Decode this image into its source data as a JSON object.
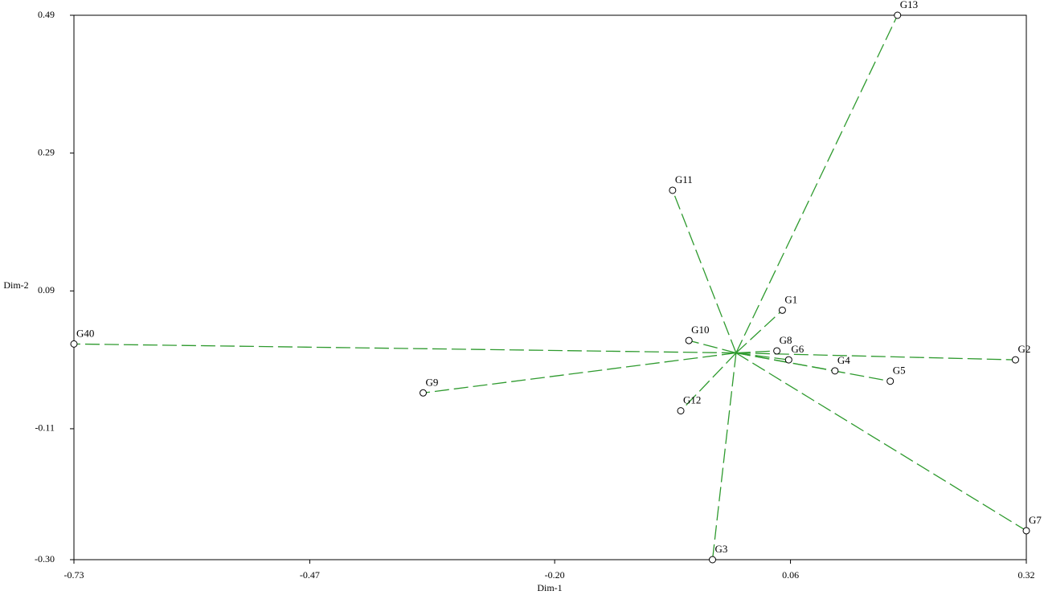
{
  "chart_data": {
    "type": "scatter",
    "x_label": "Dim-1",
    "y_label": "Dim-2",
    "labels": [
      "G13",
      "G11",
      "G1",
      "G40",
      "G10",
      "G8",
      "G6",
      "G2",
      "G4",
      "G5",
      "G9",
      "G12",
      "G7",
      "G3"
    ],
    "x": [
      0.178,
      -0.07,
      0.051,
      -0.73,
      -0.052,
      0.045,
      0.058,
      0.308,
      0.109,
      0.17,
      -0.345,
      -0.061,
      0.32,
      -0.026
    ],
    "y": [
      0.49,
      0.236,
      0.062,
      0.013,
      0.018,
      0.003,
      -0.01,
      -0.01,
      -0.026,
      -0.041,
      -0.058,
      -0.084,
      -0.258,
      -0.3
    ],
    "color": "#2e9a2e",
    "xlim": [
      -0.73,
      0.32
    ],
    "ylim": [
      -0.3,
      0.49
    ],
    "xticks": [
      -0.73,
      -0.47,
      {
        "value": -0.2,
        "label": "-0.20"
      },
      0.06,
      0.32
    ],
    "yticks": [
      {
        "value": -0.3,
        "label": "-0.30"
      },
      -0.11,
      0.09,
      0.29,
      0.49
    ]
  }
}
